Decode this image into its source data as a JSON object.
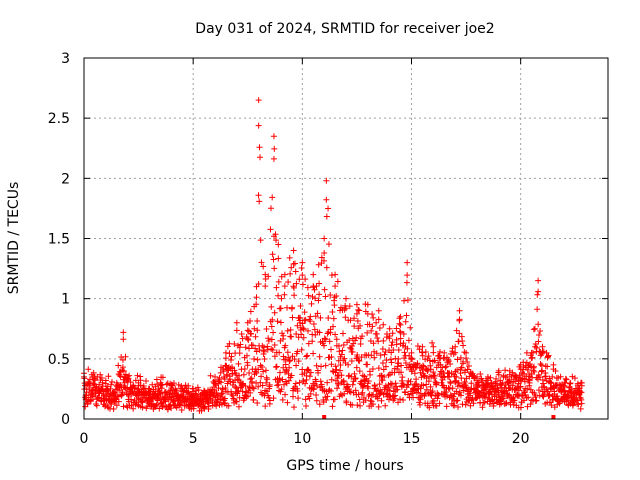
{
  "chart_data": {
    "type": "scatter",
    "title": "Day 031 of 2024, SRMTID for receiver joe2",
    "xlabel": "GPS time / hours",
    "ylabel": "SRMTID / TECUs",
    "xlim": [
      0,
      24
    ],
    "ylim": [
      0,
      3
    ],
    "x_ticks": [
      0,
      5,
      10,
      15,
      20
    ],
    "x_tick_labels": [
      "0",
      "5",
      "10",
      "15",
      "20"
    ],
    "y_ticks": [
      0,
      0.5,
      1,
      1.5,
      2,
      2.5,
      3
    ],
    "y_tick_labels": [
      "0",
      "0.5",
      "1",
      "1.5",
      "2",
      "2.5",
      "3"
    ],
    "grid": true,
    "marker": "plus",
    "color": "#ff0000",
    "x_range_of_data": [
      0,
      22.8
    ],
    "envelope_note": "approximate per-hour upper envelope of the point cloud",
    "envelope": {
      "x": [
        0,
        0.5,
        1,
        1.5,
        1.8,
        2,
        2.5,
        3,
        3.5,
        4,
        4.5,
        5,
        5.5,
        6,
        6.5,
        7,
        7.5,
        7.9,
        8.0,
        8.3,
        8.7,
        8.9,
        9.2,
        9.6,
        10,
        10.5,
        11,
        11.1,
        11.5,
        12,
        12.5,
        13,
        13.5,
        14,
        14.5,
        14.8,
        15,
        15.5,
        16,
        16.5,
        17,
        17.2,
        17.5,
        18,
        18.5,
        19,
        19.5,
        20,
        20.5,
        20.8,
        21,
        21.5,
        22,
        22.8
      ],
      "y": [
        0.38,
        0.35,
        0.32,
        0.3,
        0.72,
        0.35,
        0.3,
        0.25,
        0.3,
        0.28,
        0.25,
        0.25,
        0.22,
        0.35,
        0.55,
        0.8,
        0.8,
        1.1,
        2.65,
        1.2,
        2.35,
        1.45,
        1.2,
        1.4,
        1.3,
        1.2,
        1.5,
        1.98,
        1.2,
        1.0,
        0.95,
        0.95,
        0.9,
        0.75,
        0.85,
        1.3,
        0.55,
        0.6,
        0.6,
        0.55,
        0.6,
        0.9,
        0.55,
        0.35,
        0.35,
        0.4,
        0.4,
        0.45,
        0.55,
        1.15,
        0.6,
        0.45,
        0.3,
        0.3
      ]
    },
    "baseline_markers_x": [
      11,
      21.5
    ]
  }
}
